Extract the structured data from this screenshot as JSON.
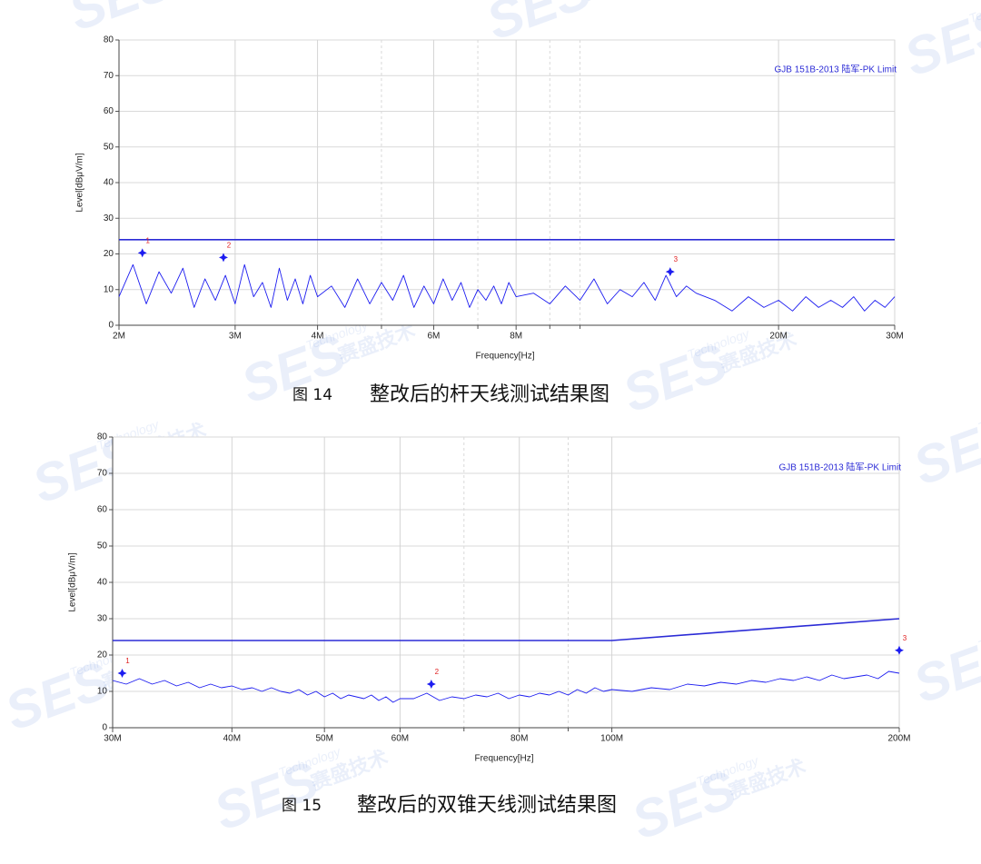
{
  "watermark": {
    "logo": "SES",
    "name": "赛盛技术",
    "tagline": "Technology"
  },
  "chart_data": [
    {
      "type": "line",
      "figure_label": "图 14",
      "caption": "整改后的杆天线测试结果图",
      "x_label": "Frequency[Hz]",
      "y_label": "Level[dBμV/m]",
      "xscale": "log",
      "grid": true,
      "legend": "upper right",
      "xlim": [
        2000000,
        30000000
      ],
      "ylim": [
        0,
        80
      ],
      "xticks": [
        {
          "value": 2000000,
          "label": "2M"
        },
        {
          "value": 3000000,
          "label": "3M"
        },
        {
          "value": 4000000,
          "label": "4M"
        },
        {
          "value": 6000000,
          "label": "6M"
        },
        {
          "value": 8000000,
          "label": "8M"
        },
        {
          "value": 20000000,
          "label": "20M"
        },
        {
          "value": 30000000,
          "label": "30M"
        }
      ],
      "yticks": [
        0,
        10,
        20,
        30,
        40,
        50,
        60,
        70,
        80
      ],
      "series": [
        {
          "color": "#1c1cf0",
          "x": [
            2000000,
            2100000,
            2200000,
            2300000,
            2400000,
            2500000,
            2600000,
            2700000,
            2800000,
            2900000,
            3000000,
            3100000,
            3200000,
            3300000,
            3400000,
            3500000,
            3600000,
            3700000,
            3800000,
            3900000,
            4000000,
            4200000,
            4400000,
            4600000,
            4800000,
            5000000,
            5200000,
            5400000,
            5600000,
            5800000,
            6000000,
            6200000,
            6400000,
            6600000,
            6800000,
            7000000,
            7200000,
            7400000,
            7600000,
            7800000,
            8000000,
            8500000,
            9000000,
            9500000,
            10000000,
            10500000,
            11000000,
            11500000,
            12000000,
            12500000,
            13000000,
            13500000,
            14000000,
            14500000,
            15000000,
            16000000,
            17000000,
            18000000,
            19000000,
            20000000,
            21000000,
            22000000,
            23000000,
            24000000,
            25000000,
            26000000,
            27000000,
            28000000,
            29000000,
            30000000
          ],
          "values": [
            8,
            17,
            6,
            15,
            9,
            16,
            5,
            13,
            7,
            14,
            6,
            17,
            8,
            12,
            5,
            16,
            7,
            13,
            6,
            14,
            8,
            11,
            5,
            13,
            6,
            12,
            7,
            14,
            5,
            11,
            6,
            13,
            7,
            12,
            5,
            10,
            7,
            11,
            6,
            12,
            8,
            9,
            6,
            11,
            7,
            13,
            6,
            10,
            8,
            12,
            7,
            14,
            8,
            11,
            9,
            7,
            4,
            8,
            5,
            7,
            4,
            8,
            5,
            7,
            5,
            8,
            4,
            7,
            5,
            8
          ]
        },
        {
          "name": "GJB 151B-2013  陆军-PK Limit",
          "color": "#2b2bd6",
          "x": [
            2000000,
            30000000
          ],
          "values": [
            24,
            24
          ]
        }
      ],
      "markers": {
        "labels": [
          "1",
          "2",
          "3"
        ],
        "x": [
          2170000,
          2880000,
          13700000
        ],
        "values": [
          20.3,
          19,
          15
        ],
        "color": "#1c1cf0",
        "label_color": "#e02020"
      }
    },
    {
      "type": "line",
      "figure_label": "图 15",
      "caption": "整改后的双锥天线测试结果图",
      "x_label": "Frequency[Hz]",
      "y_label": "Level[dBμV/m]",
      "xscale": "log",
      "grid": true,
      "legend": "upper right",
      "xlim": [
        30000000,
        200000000
      ],
      "ylim": [
        0,
        80
      ],
      "xticks": [
        {
          "value": 30000000,
          "label": "30M"
        },
        {
          "value": 40000000,
          "label": "40M"
        },
        {
          "value": 50000000,
          "label": "50M"
        },
        {
          "value": 60000000,
          "label": "60M"
        },
        {
          "value": 80000000,
          "label": "80M"
        },
        {
          "value": 100000000,
          "label": "100M"
        },
        {
          "value": 200000000,
          "label": "200M"
        }
      ],
      "yticks": [
        0,
        10,
        20,
        30,
        40,
        50,
        60,
        70,
        80
      ],
      "series": [
        {
          "color": "#1c1cf0",
          "x": [
            30000000,
            31000000,
            32000000,
            33000000,
            34000000,
            35000000,
            36000000,
            37000000,
            38000000,
            39000000,
            40000000,
            41000000,
            42000000,
            43000000,
            44000000,
            45000000,
            46000000,
            47000000,
            48000000,
            49000000,
            50000000,
            51000000,
            52000000,
            53000000,
            54000000,
            55000000,
            56000000,
            57000000,
            58000000,
            59000000,
            60000000,
            62000000,
            64000000,
            66000000,
            68000000,
            70000000,
            72000000,
            74000000,
            76000000,
            78000000,
            80000000,
            82000000,
            84000000,
            86000000,
            88000000,
            90000000,
            92000000,
            94000000,
            96000000,
            98000000,
            100000000,
            105000000,
            110000000,
            115000000,
            120000000,
            125000000,
            130000000,
            135000000,
            140000000,
            145000000,
            150000000,
            155000000,
            160000000,
            165000000,
            170000000,
            175000000,
            180000000,
            185000000,
            190000000,
            195000000,
            200000000
          ],
          "values": [
            13,
            12,
            13.5,
            12,
            13,
            11.5,
            12.5,
            11,
            12,
            11,
            11.5,
            10.5,
            11,
            10,
            11,
            10,
            9.5,
            10.5,
            9,
            10,
            8.5,
            9.5,
            8,
            9,
            8.5,
            8,
            9,
            7.5,
            8.5,
            7,
            8,
            8,
            9.5,
            7.5,
            8.5,
            8,
            9,
            8.5,
            9.5,
            8,
            9,
            8.5,
            9.5,
            9,
            10,
            9,
            10.5,
            9.5,
            11,
            10,
            10.5,
            10,
            11,
            10.5,
            12,
            11.5,
            12.5,
            12,
            13,
            12.5,
            13.5,
            13,
            14,
            13,
            14.5,
            13.5,
            14,
            14.5,
            13.5,
            15.5,
            15
          ]
        },
        {
          "name": "GJB 151B-2013  陆军-PK Limit",
          "color": "#2b2bd6",
          "x": [
            30000000,
            100000000,
            200000000
          ],
          "values": [
            24,
            24,
            30
          ]
        }
      ],
      "markers": {
        "labels": [
          "1",
          "2",
          "3"
        ],
        "x": [
          30700000,
          64700000,
          200000000
        ],
        "values": [
          15,
          12,
          21.3
        ],
        "color": "#1c1cf0",
        "label_color": "#e02020"
      }
    }
  ]
}
